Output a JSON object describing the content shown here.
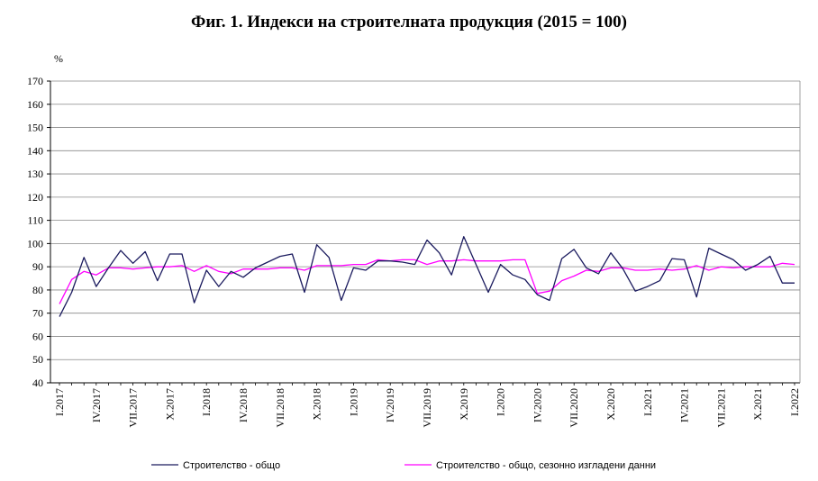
{
  "chart_data": {
    "type": "line",
    "title": "Фиг. 1. Индекси на строителната продукция (2015 = 100)",
    "ylabel": "%",
    "xlabel": "",
    "ylim": [
      40,
      170
    ],
    "yticks": [
      40,
      50,
      60,
      70,
      80,
      90,
      100,
      110,
      120,
      130,
      140,
      150,
      160,
      170
    ],
    "grid": true,
    "legend_position": "bottom",
    "colors": {
      "series_0": "#1a1a5e",
      "series_1": "#ff00ff"
    },
    "x": [
      "I.2017",
      "II.2017",
      "III.2017",
      "IV.2017",
      "V.2017",
      "VI.2017",
      "VII.2017",
      "VIII.2017",
      "IX.2017",
      "X.2017",
      "XI.2017",
      "XII.2017",
      "I.2018",
      "II.2018",
      "III.2018",
      "IV.2018",
      "V.2018",
      "VI.2018",
      "VII.2018",
      "VIII.2018",
      "IX.2018",
      "X.2018",
      "XI.2018",
      "XII.2018",
      "I.2019",
      "II.2019",
      "III.2019",
      "IV.2019",
      "V.2019",
      "VI.2019",
      "VII.2019",
      "VIII.2019",
      "IX.2019",
      "X.2019",
      "XI.2019",
      "XII.2019",
      "I.2020",
      "II.2020",
      "III.2020",
      "IV.2020",
      "V.2020",
      "VI.2020",
      "VII.2020",
      "VIII.2020",
      "IX.2020",
      "X.2020",
      "XI.2020",
      "XII.2020",
      "I.2021",
      "II.2021",
      "III.2021",
      "IV.2021",
      "V.2021",
      "VI.2021",
      "VII.2021",
      "VIII.2021",
      "IX.2021",
      "X.2021",
      "XI.2021",
      "XII.2021",
      "I.2022"
    ],
    "x_tick_labels": [
      "I.2017",
      "IV.2017",
      "VII.2017",
      "X.2017",
      "I.2018",
      "IV.2018",
      "VII.2018",
      "X.2018",
      "I.2019",
      "IV.2019",
      "VII.2019",
      "X.2019",
      "I.2020",
      "IV.2020",
      "VII.2020",
      "X.2020",
      "I.2021",
      "IV.2021",
      "VII.2021",
      "X.2021",
      "I.2022"
    ],
    "series": [
      {
        "name": "Строителство - общо",
        "values": [
          68.5,
          79,
          94,
          81.5,
          89.5,
          97,
          91.5,
          96.5,
          84,
          95.5,
          95.5,
          74.5,
          88.5,
          81.5,
          88,
          85.5,
          89.5,
          92,
          94.5,
          95.5,
          79,
          99.5,
          94,
          75.5,
          89.5,
          88.5,
          92.5,
          92.5,
          92,
          91,
          101.5,
          96,
          86.5,
          103,
          91,
          79,
          91,
          86.5,
          84.5,
          78,
          75.5,
          93.5,
          97.5,
          89.5,
          87,
          96,
          89,
          79.5,
          81.5,
          84,
          93.5,
          93,
          77,
          98,
          95.5,
          93,
          88.5,
          91,
          94.5,
          83,
          83
        ]
      },
      {
        "name": "Строителство - общо, сезонно изгладени данни",
        "values": [
          74,
          84.5,
          88,
          86.5,
          89.5,
          89.5,
          89,
          89.5,
          90,
          90,
          90.5,
          88,
          90.5,
          88,
          87,
          89,
          89,
          89,
          89.5,
          89.5,
          88.5,
          90.5,
          90.5,
          90.5,
          91,
          91,
          93,
          92.5,
          93,
          93,
          91,
          92.5,
          92.5,
          93,
          92.5,
          92.5,
          92.5,
          93,
          93,
          78.5,
          79.5,
          84,
          86,
          88.5,
          88,
          89.5,
          89.5,
          88.5,
          88.5,
          89,
          88.5,
          89,
          90.5,
          88.5,
          90,
          89.5,
          90,
          90,
          90,
          91.5,
          91
        ]
      }
    ]
  }
}
